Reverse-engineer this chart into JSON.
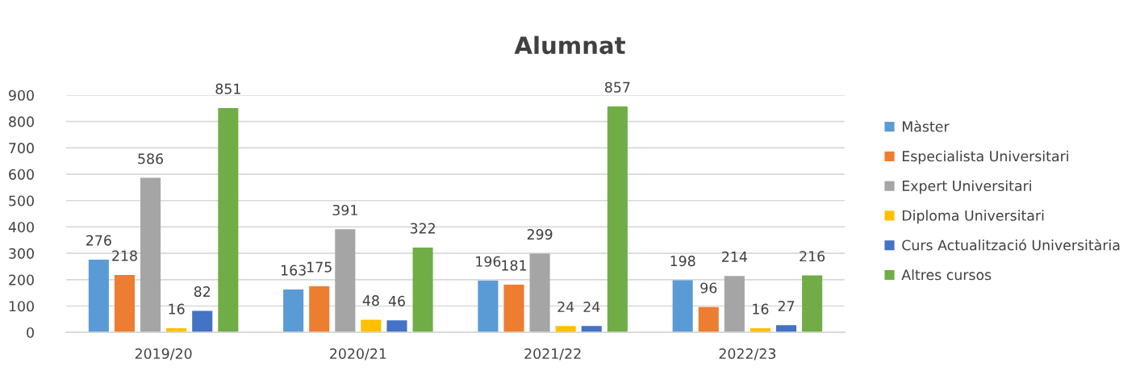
{
  "chart_data": {
    "type": "bar",
    "title": "Alumnat",
    "categories": [
      "2019/20",
      "2020/21",
      "2021/22",
      "2022/23"
    ],
    "series": [
      {
        "name": "Màster",
        "color": "#5b9bd5",
        "values": [
          276,
          163,
          196,
          198
        ]
      },
      {
        "name": "Especialista Universitari",
        "color": "#ed7d31",
        "values": [
          218,
          175,
          181,
          96
        ]
      },
      {
        "name": "Expert Universitari",
        "color": "#a5a5a5",
        "values": [
          586,
          391,
          299,
          214
        ]
      },
      {
        "name": "Diploma Universitari",
        "color": "#ffc000",
        "values": [
          16,
          48,
          24,
          16
        ]
      },
      {
        "name": "Curs Actualització Universitària",
        "color": "#4472c4",
        "values": [
          82,
          46,
          24,
          27
        ]
      },
      {
        "name": "Altres cursos",
        "color": "#70ad47",
        "values": [
          851,
          322,
          857,
          216
        ]
      }
    ],
    "ylim": [
      0,
      900
    ],
    "yticks": [
      0,
      100,
      200,
      300,
      400,
      500,
      600,
      700,
      800,
      900
    ],
    "grid": "y",
    "legend": "right",
    "data_labels": true
  }
}
